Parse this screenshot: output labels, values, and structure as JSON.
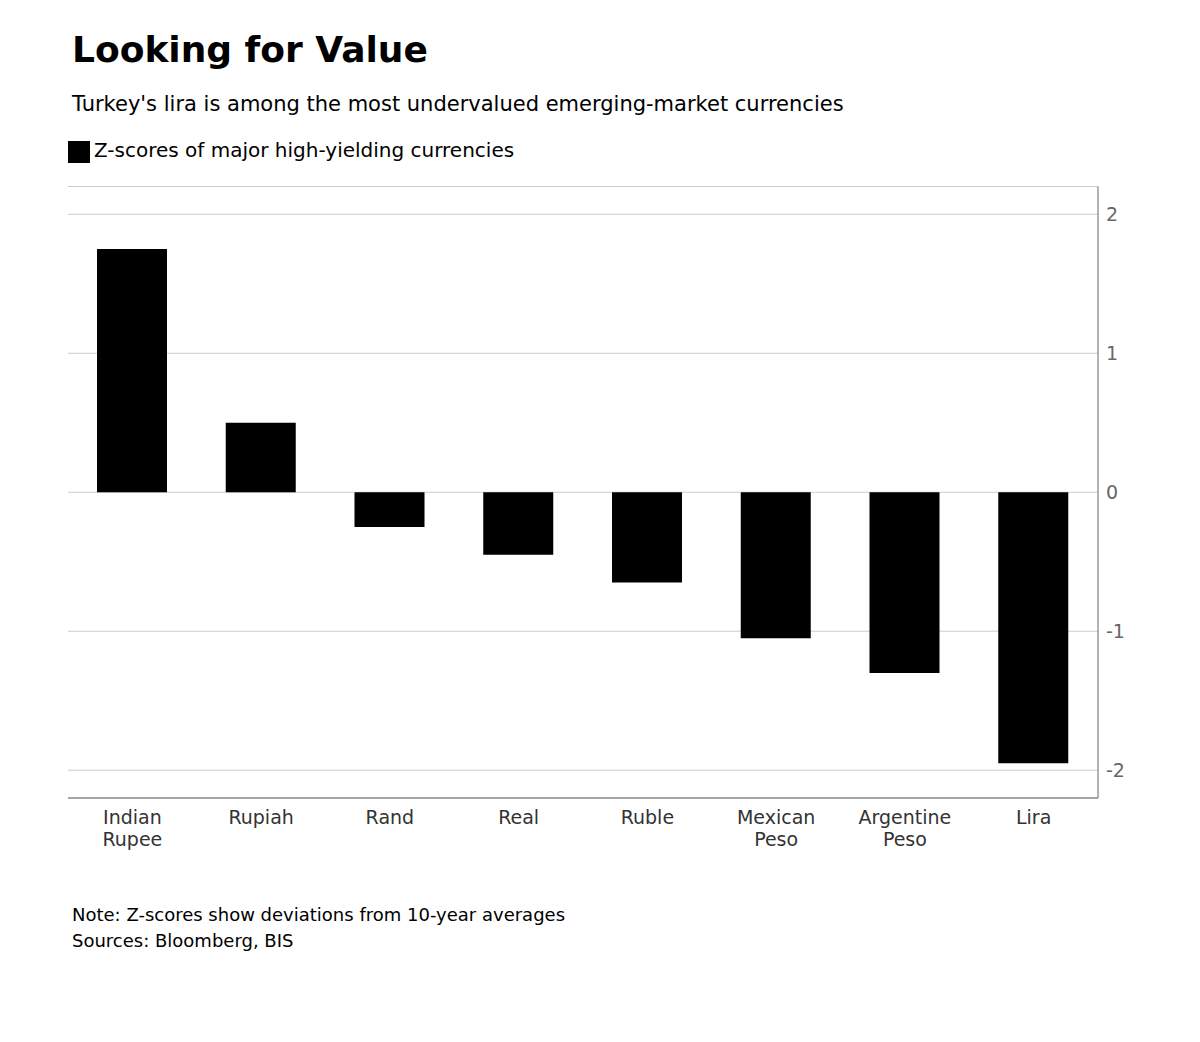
{
  "chart_data": {
    "type": "bar",
    "title": "Looking for Value",
    "subtitle": "Turkey's lira is among the most undervalued emerging-market currencies",
    "categories": [
      "Indian\nRupee",
      "Rupiah",
      "Rand",
      "Real",
      "Ruble",
      "Mexican\nPeso",
      "Argentine\nPeso",
      "Lira"
    ],
    "series": [
      {
        "name": "Z-scores of major high-yielding currencies",
        "color": "#000000",
        "values": [
          1.75,
          0.5,
          -0.25,
          -0.45,
          -0.65,
          -1.05,
          -1.3,
          -1.95
        ]
      }
    ],
    "ylim": [
      -2.2,
      2.2
    ],
    "yticks": [
      -2,
      -1,
      0,
      1,
      2
    ],
    "grid": true,
    "legend": "upper left",
    "note": "Note: Z-scores show deviations from 10-year averages",
    "sources": "Sources: Bloomberg, BIS"
  }
}
